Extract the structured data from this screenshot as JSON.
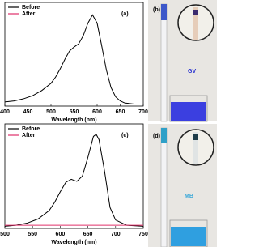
{
  "chart_data": [
    {
      "type": "line",
      "label": "(a)",
      "x_label": "Wavelength (nm)",
      "x": [
        400,
        420,
        440,
        460,
        480,
        500,
        510,
        520,
        530,
        540,
        550,
        560,
        570,
        580,
        590,
        600,
        610,
        620,
        630,
        640,
        650,
        660,
        680,
        700
      ],
      "xlim": [
        400,
        700
      ],
      "xticks": [
        400,
        450,
        500,
        550,
        600,
        650,
        700
      ],
      "ylim": [
        0,
        1
      ],
      "series": [
        {
          "name": "Before",
          "color": "#000000",
          "values": [
            0.04,
            0.05,
            0.07,
            0.1,
            0.15,
            0.22,
            0.28,
            0.36,
            0.45,
            0.53,
            0.57,
            0.6,
            0.68,
            0.8,
            0.88,
            0.8,
            0.58,
            0.35,
            0.18,
            0.09,
            0.05,
            0.03,
            0.02,
            0.02
          ]
        },
        {
          "name": "After",
          "color": "#e0306a",
          "values": [
            0.02,
            0.02,
            0.02,
            0.02,
            0.02,
            0.02,
            0.02,
            0.02,
            0.02,
            0.02,
            0.02,
            0.02,
            0.02,
            0.02,
            0.02,
            0.02,
            0.02,
            0.02,
            0.02,
            0.02,
            0.02,
            0.02,
            0.02,
            0.02
          ]
        }
      ]
    },
    {
      "type": "line",
      "label": "(c)",
      "x_label": "Wavelength (nm)",
      "x": [
        500,
        520,
        540,
        560,
        580,
        590,
        600,
        610,
        620,
        630,
        640,
        650,
        660,
        665,
        670,
        680,
        690,
        700,
        720,
        750
      ],
      "xlim": [
        500,
        750
      ],
      "xticks": [
        500,
        550,
        600,
        650,
        700,
        750
      ],
      "ylim": [
        0,
        1
      ],
      "series": [
        {
          "name": "Before",
          "color": "#000000",
          "values": [
            0.02,
            0.03,
            0.05,
            0.09,
            0.17,
            0.25,
            0.35,
            0.44,
            0.47,
            0.45,
            0.5,
            0.68,
            0.88,
            0.9,
            0.85,
            0.55,
            0.2,
            0.08,
            0.03,
            0.02
          ]
        },
        {
          "name": "After",
          "color": "#e0306a",
          "values": [
            0.03,
            0.03,
            0.03,
            0.03,
            0.03,
            0.03,
            0.03,
            0.03,
            0.03,
            0.03,
            0.03,
            0.03,
            0.03,
            0.03,
            0.03,
            0.03,
            0.03,
            0.03,
            0.03,
            0.03
          ]
        }
      ]
    }
  ],
  "photos": [
    {
      "label": "(b)",
      "caption": "GV"
    },
    {
      "label": "(d)",
      "caption": "MB"
    }
  ]
}
